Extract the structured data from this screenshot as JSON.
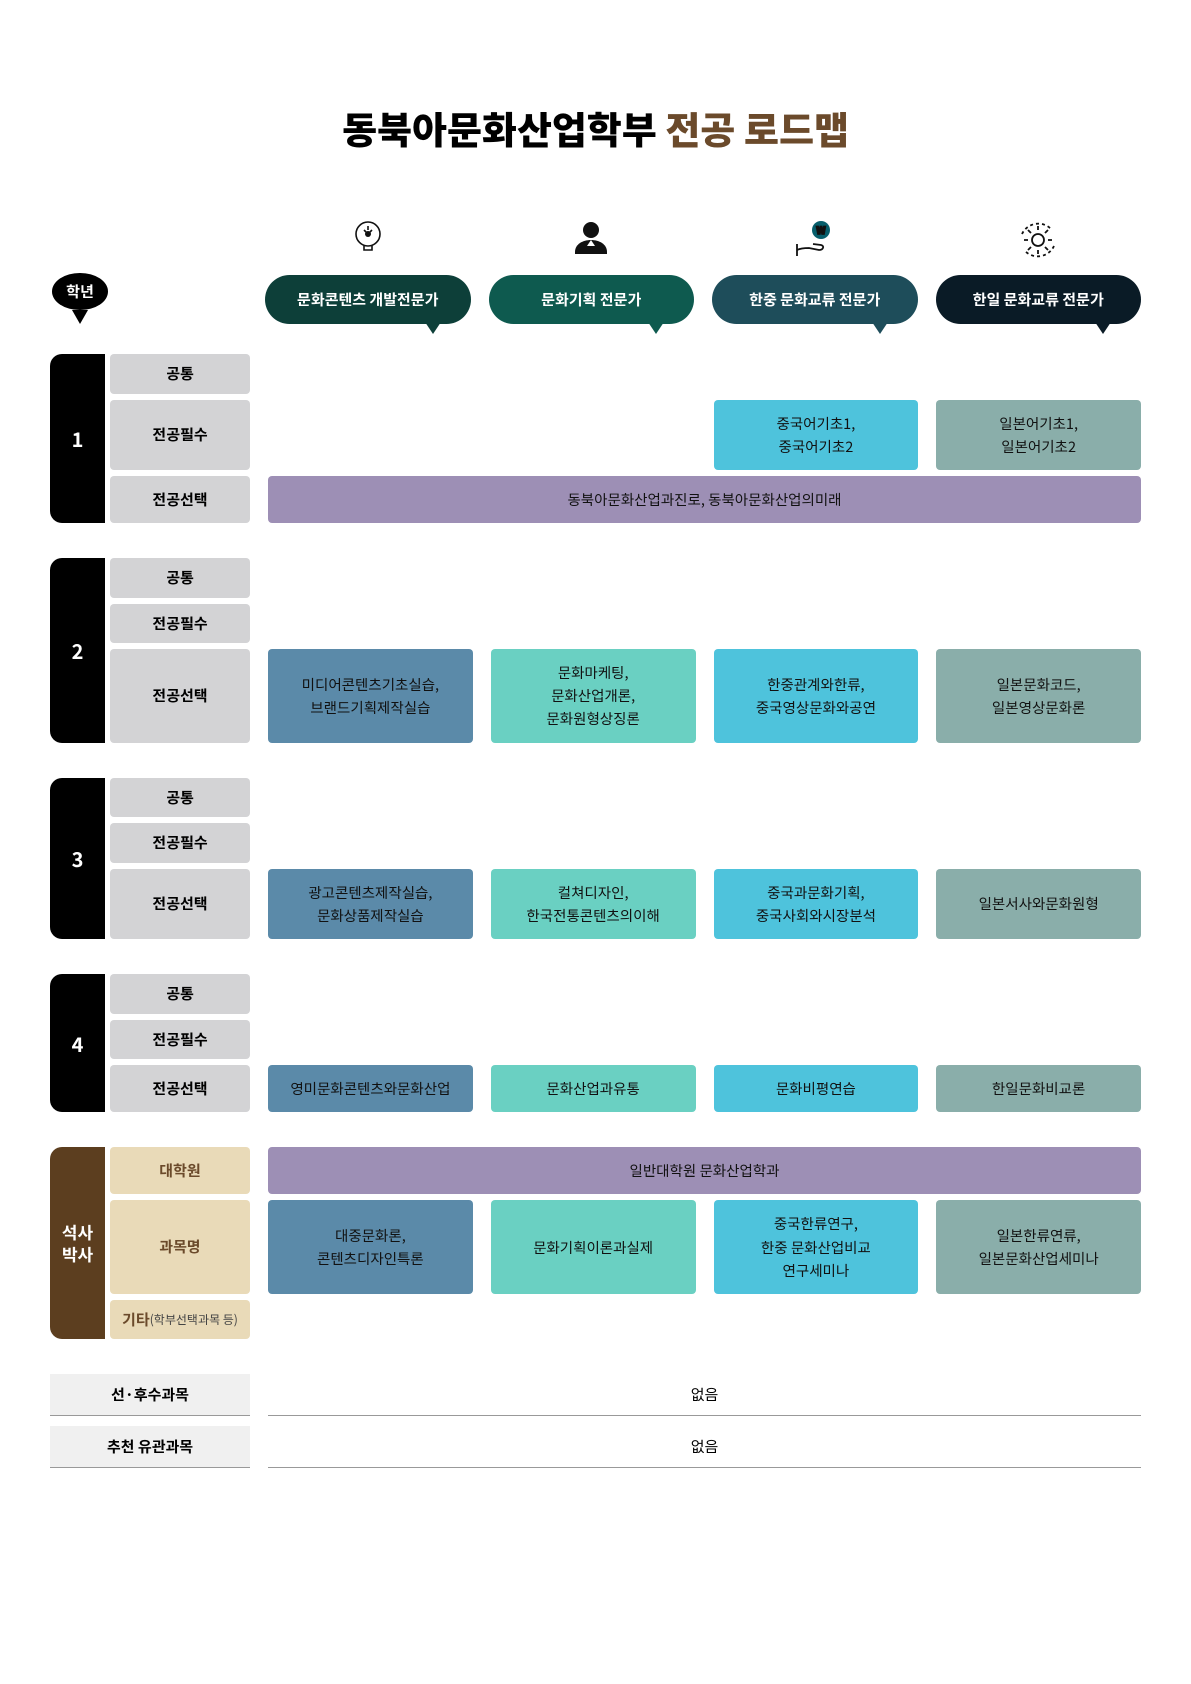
{
  "title_main": "동북아문화산업학부 ",
  "title_accent": "전공 로드맵",
  "year_header": "학년",
  "tracks": [
    {
      "label": "문화콘텐츠 개발전문가",
      "color_class": "c1",
      "cell_color": "#5b8aa9"
    },
    {
      "label": "문화기획 전문가",
      "color_class": "c2",
      "cell_color": "#6ad0c2"
    },
    {
      "label": "한중 문화교류 전문가",
      "color_class": "c3",
      "cell_color": "#4ec3dc"
    },
    {
      "label": "한일 문화교류 전문가",
      "color_class": "c4",
      "cell_color": "#8aaeaa"
    }
  ],
  "row_labels": {
    "common": "공통",
    "required": "전공필수",
    "elective": "전공선택",
    "grad": "대학원",
    "course": "과목명",
    "etc": "기타",
    "etc_sub": "(학부선택과목 등)"
  },
  "years": [
    {
      "num": "1",
      "rows": [
        {
          "kind": "common",
          "cells": [
            "",
            "",
            "",
            ""
          ]
        },
        {
          "kind": "required",
          "cells": [
            "",
            "",
            "중국어기초1,\n중국어기초2",
            "일본어기초1,\n일본어기초2"
          ]
        },
        {
          "kind": "elective",
          "span4": "동북아문화산업과진로, 동북아문화산업의미래",
          "span_color": "#9d8fb5"
        }
      ]
    },
    {
      "num": "2",
      "rows": [
        {
          "kind": "common",
          "cells": [
            "",
            "",
            "",
            ""
          ]
        },
        {
          "kind": "required",
          "cells": [
            "",
            "",
            "",
            ""
          ]
        },
        {
          "kind": "elective",
          "cells": [
            "미디어콘텐츠기초실습,\n브랜드기획제작실습",
            "문화마케팅,\n문화산업개론,\n문화원형상징론",
            "한중관계와한류,\n중국영상문화와공연",
            "일본문화코드,\n일본영상문화론"
          ]
        }
      ]
    },
    {
      "num": "3",
      "rows": [
        {
          "kind": "common",
          "cells": [
            "",
            "",
            "",
            ""
          ]
        },
        {
          "kind": "required",
          "cells": [
            "",
            "",
            "",
            ""
          ]
        },
        {
          "kind": "elective",
          "cells": [
            "광고콘텐츠제작실습,\n문화상품제작실습",
            "컬쳐디자인,\n한국전통콘텐츠의이해",
            "중국과문화기획,\n중국사회와시장분석",
            "일본서사와문화원형"
          ]
        }
      ]
    },
    {
      "num": "4",
      "rows": [
        {
          "kind": "common",
          "cells": [
            "",
            "",
            "",
            ""
          ]
        },
        {
          "kind": "required",
          "cells": [
            "",
            "",
            "",
            ""
          ]
        },
        {
          "kind": "elective",
          "cells": [
            "영미문화콘텐츠와문화산업",
            "문화산업과유통",
            "문화비평연습",
            "한일문화비교론"
          ]
        }
      ]
    }
  ],
  "grad": {
    "num": "석사\n박사",
    "rows": [
      {
        "kind": "grad",
        "span4": "일반대학원 문화산업학과",
        "span_color": "#9d8fb5"
      },
      {
        "kind": "course",
        "cells": [
          "대중문화론,\n콘텐츠디자인특론",
          "문화기획이론과실제",
          "중국한류연구,\n한중 문화산업비교\n연구세미나",
          "일본한류연류,\n일본문화산업세미나"
        ]
      },
      {
        "kind": "etc",
        "cells": [
          "",
          "",
          "",
          ""
        ]
      }
    ]
  },
  "footer": [
    {
      "label": "선·후수과목",
      "value": "없음"
    },
    {
      "label": "추천 유관과목",
      "value": "없음"
    }
  ]
}
